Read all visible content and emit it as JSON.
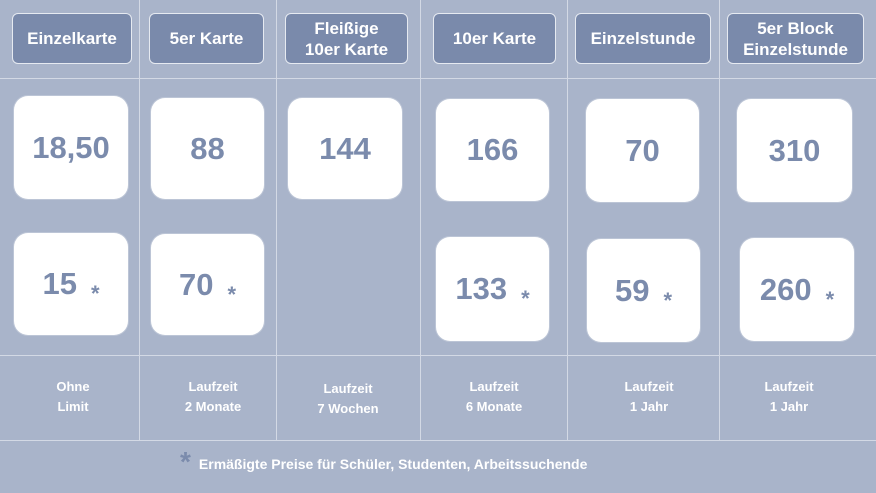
{
  "columns": [
    {
      "header": "Einzelkarte",
      "price": "18,50",
      "reduced": "15",
      "duration": "Ohne\nLimit"
    },
    {
      "header": "5er Karte",
      "price": "88",
      "reduced": "70",
      "duration": "Laufzeit\n2 Monate"
    },
    {
      "header": "Fleißige\n10er Karte",
      "price": "144",
      "reduced": "",
      "duration": "Laufzeit\n7 Wochen"
    },
    {
      "header": "10er Karte",
      "price": "166",
      "reduced": "133",
      "duration": "Laufzeit\n6 Monate"
    },
    {
      "header": "Einzelstunde",
      "price": "70",
      "reduced": "59",
      "duration": "Laufzeit\n1 Jahr"
    },
    {
      "header": "5er Block\nEinzelstunde",
      "price": "310",
      "reduced": "260",
      "duration": "Laufzeit\n1 Jahr"
    }
  ],
  "star": "*",
  "footnote": "Ermäßigte Preise für Schüler, Studenten, Arbeitssuchende",
  "colors": {
    "background": "#a9b4ca",
    "header": "#7a8aab",
    "price_text": "#7b8bac"
  }
}
